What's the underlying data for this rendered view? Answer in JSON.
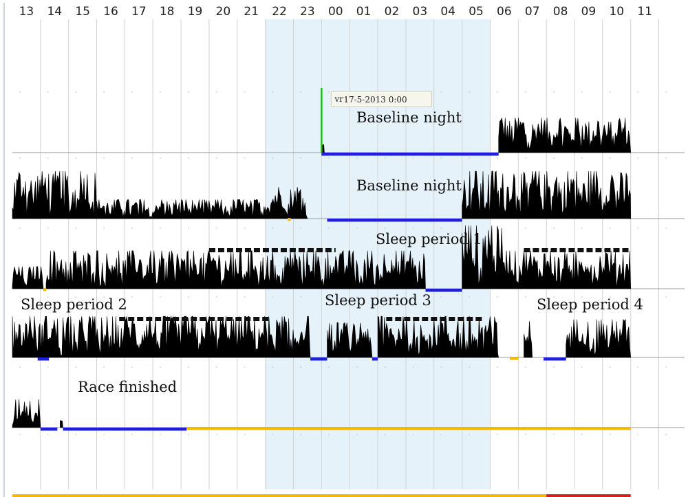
{
  "chart_data": {
    "type": "area",
    "description_of_axes": "actogram",
    "x_unit": "hour of day",
    "hours": [
      "13",
      "14",
      "15",
      "16",
      "17",
      "18",
      "19",
      "20",
      "21",
      "22",
      "23",
      "00",
      "01",
      "02",
      "03",
      "04",
      "05",
      "06",
      "07",
      "08",
      "09",
      "10",
      "11"
    ],
    "night_band": {
      "start_hour": 22,
      "end_hour": 6
    },
    "timestamp_label": {
      "prefix": "vr",
      "text": "17-5-2013  0:00",
      "hour": 0
    },
    "annotations": [
      {
        "text": "Baseline night",
        "row": 0
      },
      {
        "text": "Baseline night",
        "row": 1
      },
      {
        "text": "Sleep period 1",
        "row": 2
      },
      {
        "text": "Sleep period 2",
        "row": 3
      },
      {
        "text": "Sleep period 3",
        "row": 3
      },
      {
        "text": "Sleep period 4",
        "row": 3
      },
      {
        "text": "Race finished",
        "row": 4
      }
    ],
    "series": [
      {
        "row": 0,
        "activity": [
          {
            "start": 0.0,
            "end": 0.1,
            "level": 0.15
          },
          {
            "start": 6.3,
            "end": 11.0,
            "level": 0.55
          }
        ],
        "sleep_bars": [
          {
            "start": 0.0,
            "end": 6.3
          }
        ],
        "dashed_bars": [],
        "missing_bars": []
      },
      {
        "row": 1,
        "activity": [
          {
            "start": 13.0,
            "end": 16.0,
            "level": 0.75
          },
          {
            "start": 16.0,
            "end": 22.0,
            "level": 0.3
          },
          {
            "start": 22.0,
            "end": 23.5,
            "level": 0.5
          },
          {
            "start": 5.0,
            "end": 11.0,
            "level": 0.75
          }
        ],
        "sleep_bars": [
          {
            "start": 0.2,
            "end": 5.0
          }
        ],
        "dashed_bars": [],
        "missing_bars": [
          {
            "start": 22.8,
            "end": 22.9
          }
        ]
      },
      {
        "row": 2,
        "activity": [
          {
            "start": 13.0,
            "end": 14.1,
            "level": 0.35
          },
          {
            "start": 14.2,
            "end": 3.7,
            "level": 0.6
          },
          {
            "start": 5.0,
            "end": 6.5,
            "level": 1.0
          },
          {
            "start": 6.5,
            "end": 11.0,
            "level": 0.6
          }
        ],
        "sleep_bars": [
          {
            "start": 3.7,
            "end": 5.0
          }
        ],
        "dashed_bars": [
          {
            "start": 20.0,
            "end": 0.5
          },
          {
            "start": 7.2,
            "end": 11.0
          }
        ],
        "missing_bars": [
          {
            "start": 14.1,
            "end": 14.2
          }
        ]
      },
      {
        "row": 3,
        "activity": [
          {
            "start": 13.0,
            "end": 23.6,
            "level": 0.65
          },
          {
            "start": 0.2,
            "end": 1.8,
            "level": 0.55
          },
          {
            "start": 2.0,
            "end": 6.3,
            "level": 0.65
          },
          {
            "start": 7.2,
            "end": 7.5,
            "level": 0.6
          },
          {
            "start": 8.7,
            "end": 11.0,
            "level": 0.6
          }
        ],
        "sleep_bars": [
          {
            "start": 13.9,
            "end": 14.3
          },
          {
            "start": 23.6,
            "end": 0.2
          },
          {
            "start": 1.8,
            "end": 2.0
          },
          {
            "start": 7.9,
            "end": 8.7
          }
        ],
        "dashed_bars": [
          {
            "start": 16.8,
            "end": 22.2
          },
          {
            "start": 2.3,
            "end": 5.8
          }
        ],
        "missing_bars": [
          {
            "start": 6.7,
            "end": 7.0
          }
        ]
      },
      {
        "row": 4,
        "activity": [
          {
            "start": 13.0,
            "end": 14.0,
            "level": 0.45
          },
          {
            "start": 14.7,
            "end": 14.8,
            "level": 0.25
          }
        ],
        "sleep_bars": [
          {
            "start": 14.0,
            "end": 14.6
          },
          {
            "start": 14.8,
            "end": 19.2
          }
        ],
        "dashed_bars": [],
        "missing_bars": [
          {
            "start": 19.2,
            "end": 11.0
          }
        ]
      },
      {
        "row": 5,
        "activity": [],
        "sleep_bars": [],
        "dashed_bars": [],
        "missing_bars": [
          {
            "start": 13.0,
            "end": 8.0
          }
        ],
        "red_bars": [
          {
            "start": 8.0,
            "end": 11.0
          }
        ]
      }
    ],
    "colors": {
      "activity": "#000000",
      "sleep": "#1f1fd6",
      "missing": "#f5b800",
      "red": "#d91c1c",
      "night": "#e6f2fa",
      "grid": "#d0d0d0",
      "marker": "#22bb22"
    }
  }
}
